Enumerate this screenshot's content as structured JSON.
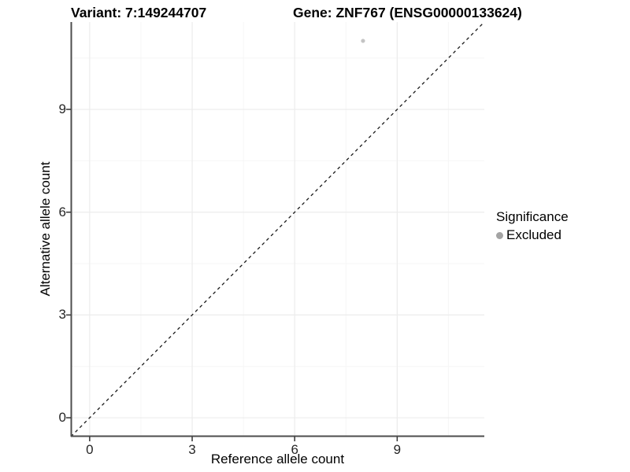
{
  "figure": {
    "title_left": "Variant: 7:149244707",
    "title_right": "Gene: ZNF767 (ENSG00000133624)"
  },
  "axes": {
    "x_label": "Reference allele count",
    "y_label": "Alternative allele count",
    "x_tick_labels": [
      "0",
      "3",
      "6",
      "9"
    ],
    "y_tick_labels": [
      "0",
      "3",
      "6",
      "9"
    ]
  },
  "legend": {
    "title": "Significance",
    "items": [
      {
        "label": "Excluded",
        "color": "#a4a4a4"
      }
    ]
  },
  "chart_data": {
    "type": "scatter",
    "title": "Variant: 7:149244707 — Gene: ZNF767 (ENSG00000133624)",
    "xlabel": "Reference allele count",
    "ylabel": "Alternative allele count",
    "xlim": [
      -0.55,
      11.55
    ],
    "ylim": [
      -0.55,
      11.55
    ],
    "xticks": [
      0,
      3,
      6,
      9
    ],
    "yticks": [
      0,
      3,
      6,
      9
    ],
    "x_minor_ticks": [
      1.5,
      4.5,
      7.5,
      10.5
    ],
    "y_minor_ticks": [
      1.5,
      4.5,
      7.5,
      10.5
    ],
    "grid": true,
    "legend_position": "right",
    "series": [
      {
        "name": "Excluded",
        "points": [
          {
            "x": 8,
            "y": 11
          }
        ],
        "color": "#c4c4c4",
        "marker_radius": 2.6
      }
    ],
    "reference_line": {
      "style": "dashed",
      "color": "#1a1a1a",
      "from": [
        -0.55,
        -0.55
      ],
      "to": [
        11.55,
        11.55
      ]
    },
    "colors": {
      "grid_major": "#ececec",
      "grid_minor": "#f6f6f6",
      "axis_line": "#4d4d4d",
      "tick_mark": "#333333"
    }
  }
}
